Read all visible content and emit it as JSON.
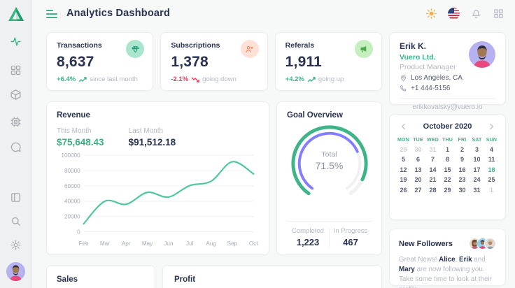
{
  "app": {
    "title": "Analytics Dashboard"
  },
  "colors": {
    "accent": "#3eb489",
    "navy": "#293251",
    "negative": "#e73f5e",
    "purple": "#837dff",
    "line": "#4fc6a2",
    "sun": "#f5b63e"
  },
  "topbar": {
    "icons": [
      "theme-sun-icon",
      "language-flag-us-icon",
      "notifications-bell-icon",
      "apps-grid-icon"
    ]
  },
  "sidebar": {
    "nav_icons": [
      "activity-icon",
      "grid-icon",
      "cube-icon",
      "cpu-icon",
      "chat-icon"
    ],
    "bottom_icons": [
      "layout-panel-icon",
      "search-icon",
      "settings-gear-icon"
    ],
    "active": "activity-icon"
  },
  "stats": [
    {
      "label": "Transactions",
      "value": "8,637",
      "delta": "+6.4%",
      "direction": "up",
      "note": "since last month",
      "icon": "gem-icon"
    },
    {
      "label": "Subscriptions",
      "value": "1,378",
      "delta": "-2.1%",
      "direction": "down",
      "note": "going down",
      "icon": "user-plus-icon"
    },
    {
      "label": "Referals",
      "value": "1,911",
      "delta": "+4.2%",
      "direction": "up",
      "note": "going up",
      "icon": "megaphone-icon"
    }
  ],
  "profile": {
    "name": "Erik K.",
    "company": "Vuero Ltd.",
    "role": "Product Manager",
    "location": "Los Angeles, CA",
    "phone": "+1 444-5156",
    "email": "erikkovalsky@vuero.io"
  },
  "revenue": {
    "title": "Revenue",
    "this_month_label": "This Month",
    "this_month_value": "$75,648.43",
    "last_month_label": "Last Month",
    "last_month_value": "$91,512.18"
  },
  "goal": {
    "title": "Goal Overview",
    "center_label": "Total",
    "center_value": "71.5%",
    "completed_label": "Completed",
    "completed_value": "1,223",
    "in_progress_label": "In Progress",
    "in_progress_value": "467"
  },
  "calendar": {
    "month": "October 2020",
    "day_names": [
      "MON",
      "TUE",
      "WED",
      "THU",
      "FRI",
      "SAT",
      "SUN"
    ],
    "selected_day": "18",
    "cells": [
      {
        "d": "29",
        "muted": true
      },
      {
        "d": "30",
        "muted": true
      },
      {
        "d": "31",
        "muted": true
      },
      {
        "d": "1"
      },
      {
        "d": "2"
      },
      {
        "d": "3"
      },
      {
        "d": "4"
      },
      {
        "d": "5"
      },
      {
        "d": "6"
      },
      {
        "d": "7"
      },
      {
        "d": "8"
      },
      {
        "d": "9"
      },
      {
        "d": "10"
      },
      {
        "d": "11"
      },
      {
        "d": "12"
      },
      {
        "d": "13"
      },
      {
        "d": "14"
      },
      {
        "d": "15"
      },
      {
        "d": "16"
      },
      {
        "d": "17"
      },
      {
        "d": "18",
        "selected": true
      },
      {
        "d": "19"
      },
      {
        "d": "20"
      },
      {
        "d": "21"
      },
      {
        "d": "22"
      },
      {
        "d": "23"
      },
      {
        "d": "24"
      },
      {
        "d": "25"
      },
      {
        "d": "26"
      },
      {
        "d": "27"
      },
      {
        "d": "28"
      },
      {
        "d": "29"
      },
      {
        "d": "30"
      },
      {
        "d": "31"
      },
      {
        "d": "1",
        "muted": true
      }
    ]
  },
  "followers": {
    "title": "New Followers",
    "message_parts": [
      {
        "t": "Great News! ",
        "b": false
      },
      {
        "t": "Alice",
        "b": true
      },
      {
        "t": ", ",
        "b": false
      },
      {
        "t": "Erik",
        "b": true
      },
      {
        "t": " and ",
        "b": false
      },
      {
        "t": "Mary",
        "b": true
      },
      {
        "t": " are now following you. Take some time to look at their profile.",
        "b": false
      }
    ]
  },
  "bottom_cards": [
    {
      "title": "Sales"
    },
    {
      "title": "Profit"
    }
  ],
  "chart_data": [
    {
      "type": "line",
      "title": "Revenue",
      "x": [
        "Feb",
        "Mar",
        "Apr",
        "May",
        "Jun",
        "Jul",
        "Aug",
        "Sep",
        "Oct"
      ],
      "series": [
        {
          "name": "Revenue",
          "values": [
            10500,
            40000,
            36000,
            51500,
            45500,
            60500,
            66000,
            91512,
            75648
          ]
        }
      ],
      "ylim": [
        0,
        100000
      ],
      "yticks": [
        0,
        20000,
        40000,
        60000,
        80000,
        100000
      ],
      "grid": true,
      "legend": "none",
      "line_color": "#4fc6a2"
    },
    {
      "type": "radial",
      "title": "Goal Overview",
      "center_label": "Total",
      "center_value": 71.5,
      "start_angle": -145,
      "end_angle": 145,
      "radii": [
        53,
        44
      ],
      "widths": [
        5,
        4
      ],
      "track_color": "#f1f1f4",
      "series": [
        {
          "name": "Completed",
          "value": 1223,
          "sweep_pct": 90,
          "color": "#3eb489"
        },
        {
          "name": "In Progress",
          "value": 467,
          "sweep_pct": 73,
          "color": "#837dff"
        }
      ]
    }
  ]
}
